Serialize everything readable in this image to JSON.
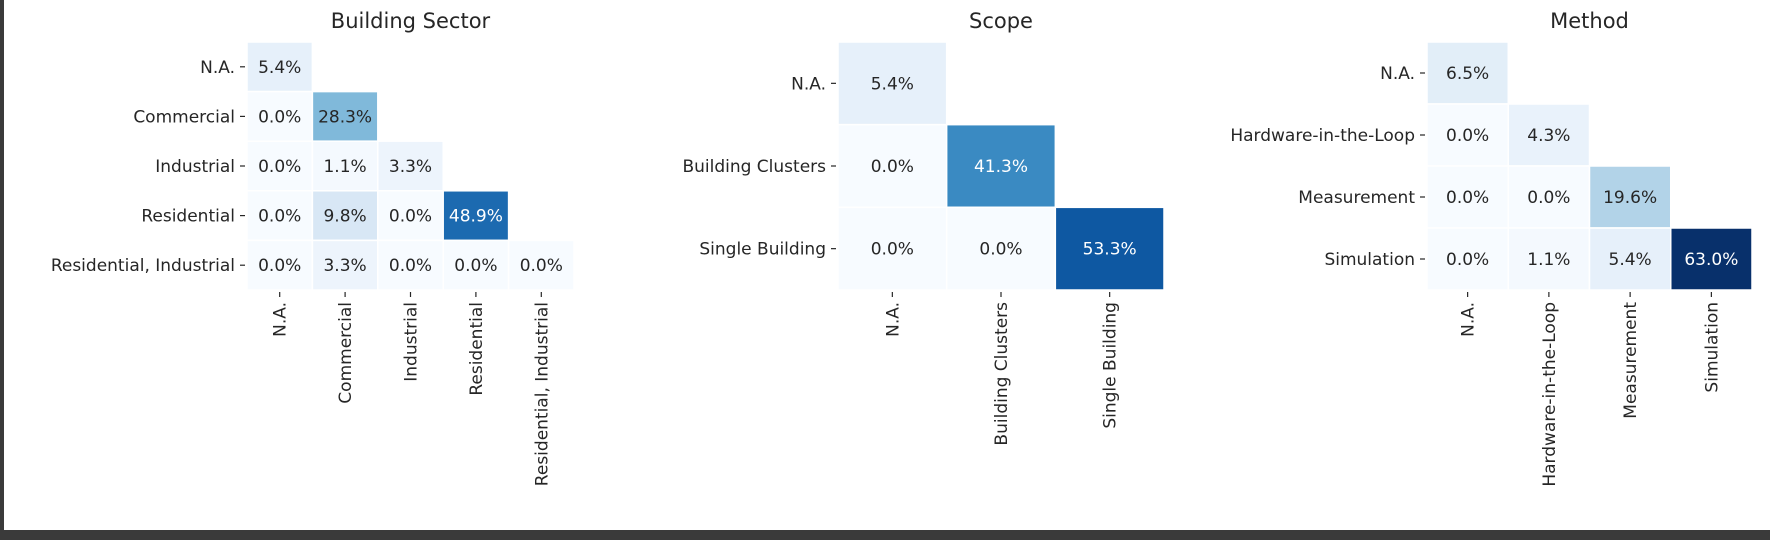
{
  "chart_data": [
    {
      "type": "heatmap",
      "title": "Building Sector",
      "categories": [
        "N.A.",
        "Commercial",
        "Industrial",
        "Residential",
        "Residential, Industrial"
      ],
      "rows": [
        [
          5.4
        ],
        [
          0.0,
          28.3
        ],
        [
          0.0,
          1.1,
          3.3
        ],
        [
          0.0,
          9.8,
          0.0,
          48.9
        ],
        [
          0.0,
          3.3,
          0.0,
          0.0,
          0.0
        ]
      ],
      "value_format": "%",
      "mask": "upper-triangle",
      "colormap": "Blues",
      "vmin": 0,
      "vmax": 63.0
    },
    {
      "type": "heatmap",
      "title": "Scope",
      "categories": [
        "N.A.",
        "Building Clusters",
        "Single Building"
      ],
      "rows": [
        [
          5.4
        ],
        [
          0.0,
          41.3
        ],
        [
          0.0,
          0.0,
          53.3
        ]
      ],
      "value_format": "%",
      "mask": "upper-triangle",
      "colormap": "Blues",
      "vmin": 0,
      "vmax": 63.0
    },
    {
      "type": "heatmap",
      "title": "Method",
      "categories": [
        "N.A.",
        "Hardware-in-the-Loop",
        "Measurement",
        "Simulation"
      ],
      "rows": [
        [
          6.5
        ],
        [
          0.0,
          4.3
        ],
        [
          0.0,
          0.0,
          19.6
        ],
        [
          0.0,
          1.1,
          5.4,
          63.0
        ]
      ],
      "value_format": "%",
      "mask": "upper-triangle",
      "colormap": "Blues",
      "vmin": 0,
      "vmax": 63.0
    }
  ]
}
